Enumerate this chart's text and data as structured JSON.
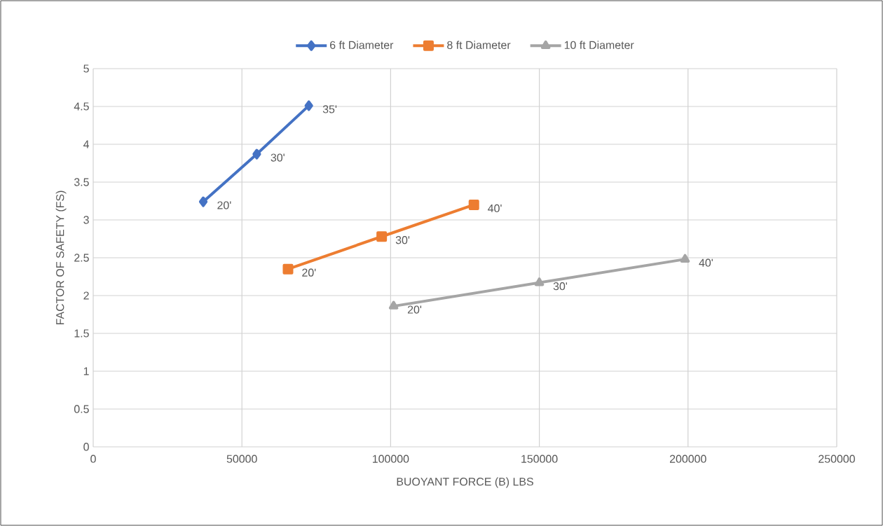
{
  "chart_data": {
    "type": "line",
    "xlabel": "BUOYANT FORCE (B) LBS",
    "ylabel": "FACTOR OF SAFETY (FS)",
    "series": [
      {
        "name": "6 ft Diameter",
        "color": "#4472c4",
        "marker": "diamond",
        "x": [
          37000,
          55000,
          72500
        ],
        "values": [
          3.24,
          3.87,
          4.51
        ]
      },
      {
        "name": "8 ft Diameter",
        "color": "#ed7d31",
        "marker": "square",
        "x": [
          65500,
          97000,
          128000
        ],
        "values": [
          2.35,
          2.78,
          3.2
        ]
      },
      {
        "name": "10 ft Diameter",
        "color": "#a5a5a5",
        "marker": "triangle",
        "x": [
          101000,
          150000,
          199000
        ],
        "values": [
          1.86,
          2.17,
          2.48
        ]
      }
    ],
    "annotations": [
      {
        "text": "20'",
        "x": 37000,
        "y": 3.24
      },
      {
        "text": "30'",
        "x": 55000,
        "y": 3.87
      },
      {
        "text": "35'",
        "x": 72500,
        "y": 4.51
      },
      {
        "text": "20'",
        "x": 65500,
        "y": 2.35
      },
      {
        "text": "30'",
        "x": 97000,
        "y": 2.78
      },
      {
        "text": "40'",
        "x": 128000,
        "y": 3.2
      },
      {
        "text": "20'",
        "x": 101000,
        "y": 1.86
      },
      {
        "text": "30'",
        "x": 150000,
        "y": 2.17
      },
      {
        "text": "40'",
        "x": 199000,
        "y": 2.48
      }
    ],
    "xlim": [
      0,
      250000
    ],
    "ylim": [
      0,
      5
    ],
    "xticks": [
      0,
      50000,
      100000,
      150000,
      200000,
      250000
    ],
    "yticks": [
      0,
      0.5,
      1,
      1.5,
      2,
      2.5,
      3,
      3.5,
      4,
      4.5,
      5
    ],
    "grid": true,
    "legend": "top",
    "line_style": "solid"
  }
}
